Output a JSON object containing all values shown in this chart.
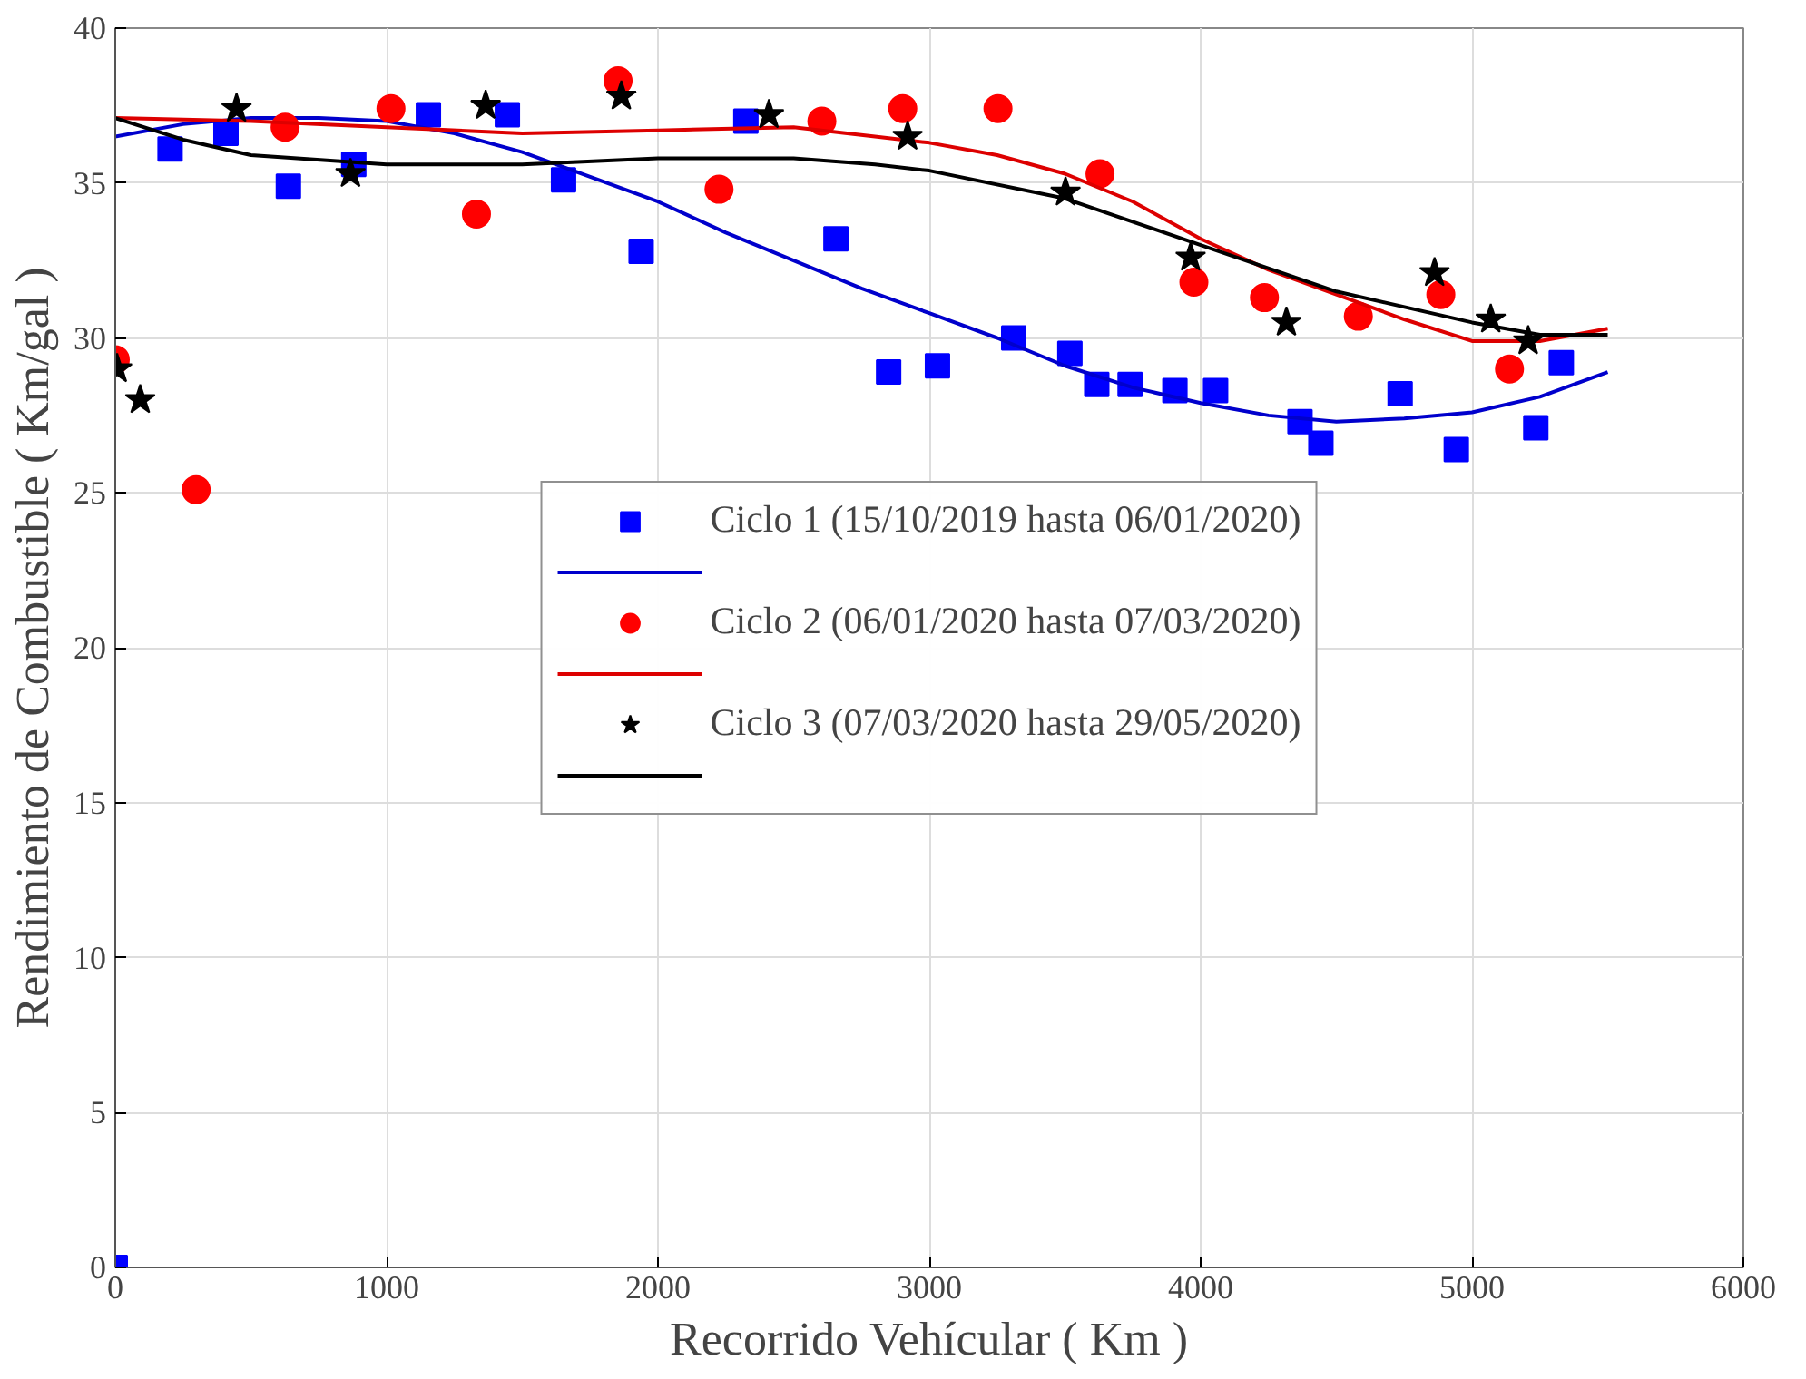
{
  "chart_data": {
    "type": "scatter",
    "xlabel": "Recorrido Vehícular ( Km )",
    "ylabel": "Rendimiento de Combustible ( Km/gal )",
    "xlim": [
      0,
      6000
    ],
    "ylim": [
      0,
      40
    ],
    "xticks": [
      0,
      1000,
      2000,
      3000,
      4000,
      5000,
      6000
    ],
    "yticks": [
      0,
      5,
      10,
      15,
      20,
      25,
      30,
      35,
      40
    ],
    "grid": true,
    "legend": "center",
    "series": [
      {
        "name": "Ciclo 1 (15/10/2019 hasta 06/01/2020)",
        "marker": "square",
        "color": "#0000ff",
        "x": [
          0,
          202,
          408,
          638,
          879,
          1154,
          1445,
          1652,
          1938,
          2324,
          2656,
          2850,
          3030,
          3311,
          3518,
          3617,
          3740,
          3905,
          4055,
          4366,
          4443,
          4735,
          4942,
          5235,
          5329
        ],
        "values": [
          0,
          36.1,
          36.6,
          34.9,
          35.6,
          37.2,
          37.2,
          35.1,
          32.8,
          37.0,
          33.2,
          28.9,
          29.1,
          30.0,
          29.5,
          28.5,
          28.5,
          28.3,
          28.3,
          27.3,
          26.6,
          28.2,
          26.4,
          27.1,
          29.2
        ]
      },
      {
        "type": "line",
        "marker": "none",
        "color": "#0000cc",
        "x": [
          0,
          250,
          500,
          750,
          1000,
          1250,
          1500,
          1750,
          2000,
          2250,
          2500,
          2750,
          3000,
          3250,
          3500,
          3750,
          4000,
          4250,
          4500,
          4750,
          5000,
          5250,
          5500
        ],
        "values": [
          36.5,
          36.9,
          37.1,
          37.1,
          37.0,
          36.6,
          36.0,
          35.2,
          34.4,
          33.4,
          32.5,
          31.6,
          30.8,
          30.0,
          29.1,
          28.4,
          27.9,
          27.5,
          27.3,
          27.4,
          27.6,
          28.1,
          28.9
        ]
      },
      {
        "name": "Ciclo 2 (06/01/2020 hasta 07/03/2020)",
        "marker": "circle",
        "color": "#ff0000",
        "x": [
          0,
          298,
          626,
          1016,
          1331,
          1853,
          2225,
          2604,
          2902,
          3253,
          3629,
          3975,
          4235,
          4581,
          4885,
          5138
        ],
        "values": [
          29.3,
          25.1,
          36.8,
          37.4,
          34.0,
          38.3,
          34.8,
          37.0,
          37.4,
          37.4,
          35.3,
          31.8,
          31.3,
          30.7,
          31.4,
          29.0
        ]
      },
      {
        "type": "line",
        "marker": "none",
        "color": "#dd0000",
        "x": [
          0,
          500,
          1000,
          1500,
          2000,
          2500,
          2800,
          3000,
          3250,
          3500,
          3750,
          4000,
          4250,
          4500,
          4750,
          5000,
          5250,
          5500
        ],
        "values": [
          37.1,
          37.0,
          36.8,
          36.6,
          36.7,
          36.8,
          36.5,
          36.3,
          35.9,
          35.3,
          34.4,
          33.2,
          32.2,
          31.4,
          30.6,
          29.9,
          29.9,
          30.3
        ]
      },
      {
        "name": "Ciclo 3 (07/03/2020 hasta 29/05/2020)",
        "marker": "star",
        "color": "#000000",
        "x": [
          7,
          92,
          447,
          867,
          1365,
          1865,
          2409,
          2920,
          3502,
          3963,
          4316,
          4862,
          5069,
          5207
        ],
        "values": [
          29.0,
          28.0,
          37.4,
          35.3,
          37.5,
          37.8,
          37.2,
          36.5,
          34.7,
          32.6,
          30.5,
          32.1,
          30.6,
          29.9
        ]
      },
      {
        "type": "line",
        "marker": "none",
        "color": "#000000",
        "x": [
          0,
          250,
          500,
          1000,
          1500,
          2000,
          2500,
          2800,
          3000,
          3500,
          4000,
          4500,
          5000,
          5250,
          5500
        ],
        "values": [
          37.1,
          36.4,
          35.9,
          35.6,
          35.6,
          35.8,
          35.8,
          35.6,
          35.4,
          34.5,
          33.0,
          31.5,
          30.5,
          30.1,
          30.1
        ]
      }
    ]
  }
}
